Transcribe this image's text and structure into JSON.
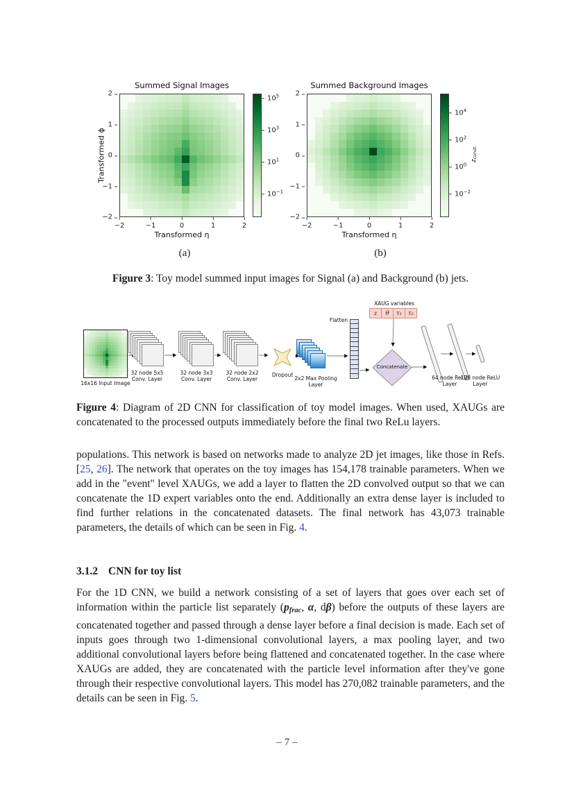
{
  "theme": {
    "css_vars": {
      "link": "#3b4cc0",
      "xaug-fill": "#f9d3ce",
      "xaug-border": "#d98c80",
      "diamond-fill": "#dcd3e8",
      "diamond-border": "#8f8f9f",
      "star-fill": "#faeec5",
      "star-border": "#c9a84c",
      "flatten-fill": "#dbe5f3",
      "layer-fill": "#f1f1f1",
      "layer-border": "#888888"
    },
    "greens": [
      "#f7fcf5",
      "#e5f5e0",
      "#c7e9c0",
      "#a1d99b",
      "#74c476",
      "#41ab5d",
      "#238b45",
      "#006d2c",
      "#00441b"
    ]
  },
  "chart_data": [
    {
      "type": "heatmap",
      "title": "Summed Signal Images",
      "xlabel": "Transformed η",
      "ylabel": "Transformed ϕ",
      "x_ticks": [
        "−2",
        "−1",
        "0",
        "1",
        "2"
      ],
      "y_ticks": [
        "2",
        "1",
        "0",
        "−1",
        "−2"
      ],
      "x_range": [
        -2,
        2
      ],
      "y_range": [
        -2,
        2
      ],
      "grid_size": 16,
      "colormap": "Greens",
      "colorbar_scale": "log",
      "colorbar_ticks": [
        {
          "exp": "5",
          "pos": 0.034
        },
        {
          "exp": "3",
          "pos": 0.292
        },
        {
          "exp": "1",
          "pos": 0.551
        },
        {
          "exp": "−1",
          "pos": 0.809
        }
      ],
      "intensity": {
        "cx": 7.6,
        "cy": 7.4,
        "sigma": 5.6,
        "peak": 0.5,
        "cut": 9.4,
        "row_boost": {
          "row": 8,
          "v": 0.05
        },
        "col_boost": {
          "col": 8,
          "v": 0.05
        },
        "streaks": [
          {
            "col": 8,
            "rows": [
              6,
              7,
              8,
              9,
              10,
              11,
              12
            ],
            "boost": [
              0.08,
              0.12,
              0.33,
              0.12,
              0.27,
              0.3,
              0.12
            ]
          },
          {
            "col": 7,
            "rows": [
              7,
              8,
              9,
              10,
              11
            ],
            "boost": [
              0.06,
              0.08,
              0.08,
              0.08,
              0.06
            ]
          },
          {
            "col": 9,
            "rows": [
              8,
              9,
              10,
              11
            ],
            "boost": [
              0.05,
              0.04,
              0.05,
              0.04
            ]
          }
        ]
      }
    },
    {
      "type": "heatmap",
      "title": "Summed Background Images",
      "xlabel": "Transformed η",
      "ylabel": "",
      "colorbar_label_runs": [
        {
          "t": "z",
          "s": "i"
        },
        {
          "t": "const.",
          "s": "isub"
        }
      ],
      "x_ticks": [
        "−2",
        "−1",
        "0",
        "1",
        "2"
      ],
      "y_ticks": [
        "2",
        "1",
        "0",
        "−1",
        "−2"
      ],
      "x_range": [
        -2,
        2
      ],
      "y_range": [
        -2,
        2
      ],
      "grid_size": 16,
      "colormap": "Greens",
      "colorbar_scale": "log",
      "colorbar_ticks": [
        {
          "exp": "4",
          "pos": 0.152
        },
        {
          "exp": "2",
          "pos": 0.371
        },
        {
          "exp": "0",
          "pos": 0.59
        },
        {
          "exp": "−2",
          "pos": 0.809
        }
      ],
      "intensity": {
        "cx": 7.9,
        "cy": 7.2,
        "sigma": 4.4,
        "peak": 0.62,
        "cut": 8.1,
        "row_boost": {
          "row": 7,
          "v": 0.03
        },
        "col_boost": {
          "col": 8,
          "v": 0.03
        },
        "streaks": [
          {
            "col": 8,
            "rows": [
              7
            ],
            "boost": [
              0.3
            ]
          }
        ]
      }
    }
  ],
  "figure3": {
    "subcaption_a": "(a)",
    "subcaption_b": "(b)",
    "caption_runs": [
      {
        "t": "Figure 3",
        "s": "b"
      },
      {
        "t": ": Toy model summed input images for Signal (a) and Background (b) jets."
      }
    ]
  },
  "figure4": {
    "caption_runs": [
      {
        "t": "Figure 4",
        "s": "b"
      },
      {
        "t": ": Diagram of 2D CNN for classification of toy model images. When used, XAUGs are concatenated to the processed outputs immediately before the final two ReLu layers."
      }
    ],
    "diagram": {
      "input_label": "16x16 Input Image",
      "conv1_label": "32 node 5x5 Conv. Layer",
      "conv2_label": "32 node 3x3 Conv. Layer",
      "conv3_label": "32 node 2x2 Conv. Layer",
      "dropout_label": "Dropout",
      "pool_label": "2x2 Max Pooling Layer",
      "flatten_label": "Flatten",
      "xaug_title": "XAUG variables",
      "xaug_cells": [
        "z",
        "θ",
        "τ₁",
        "τ₂"
      ],
      "concat_label": "Concatenate",
      "relu1_label": "64 node ReLU Layer",
      "relu2_label": "128 node ReLU Layer"
    }
  },
  "body": {
    "para1_runs": [
      {
        "t": "populations. This network is based on networks made to analyze 2D jet images, like those in Refs. ["
      },
      {
        "t": "25",
        "s": "link"
      },
      {
        "t": ", "
      },
      {
        "t": "26",
        "s": "link"
      },
      {
        "t": "]. The network that operates on the toy images has 154,178 trainable parameters. When we add in the \"event\" level XAUGs, we add a layer to flatten the 2D convolved output so that we can concatenate the 1D expert variables onto the end. Additionally an extra dense layer is included to find further relations in the concatenated datasets. The final network has 43,073 trainable parameters, the details of which can be seen in Fig. "
      },
      {
        "t": "4",
        "s": "link"
      },
      {
        "t": "."
      }
    ],
    "heading": {
      "number": "3.1.2",
      "title": "CNN for toy list"
    },
    "para2_runs": [
      {
        "t": "For the 1D CNN, we build a network consisting of a set of layers that goes over each set of information within the particle list separately ("
      },
      {
        "t": "p",
        "s": "mathbi"
      },
      {
        "t": "frac",
        "s": "sub"
      },
      {
        "t": ", "
      },
      {
        "t": "α",
        "s": "mathbi"
      },
      {
        "t": ", d"
      },
      {
        "t": "β",
        "s": "mathbi"
      },
      {
        "t": ") before the outputs of these layers are concatenated together and passed through a dense layer before a final decision is made. Each set of inputs goes through two 1-dimensional convolutional layers, a max pooling layer, and two additional convolutional layers before being flattened and concatenated together. In the case where XAUGs are added, they are concatenated with the particle level information after they've gone through their respective convolutional layers. This model has 270,082 trainable parameters, and the details can be seen in Fig. "
      },
      {
        "t": "5",
        "s": "link"
      },
      {
        "t": "."
      }
    ]
  },
  "footer": {
    "page": "– 7 –"
  }
}
